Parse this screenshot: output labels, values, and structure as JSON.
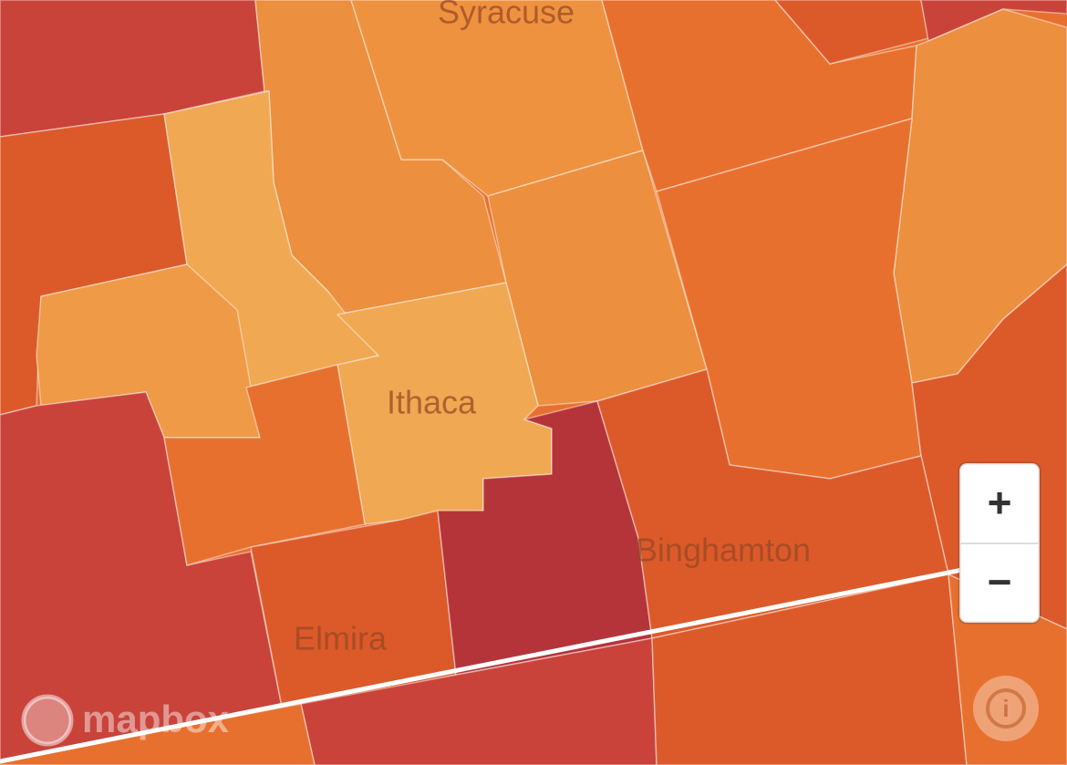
{
  "places": [
    "Syracuse",
    "Ithaca",
    "Binghamton",
    "Elmira"
  ],
  "attribution": "mapbox",
  "controls": {
    "zoom_in": "+",
    "zoom_out": "−",
    "info": "i"
  }
}
